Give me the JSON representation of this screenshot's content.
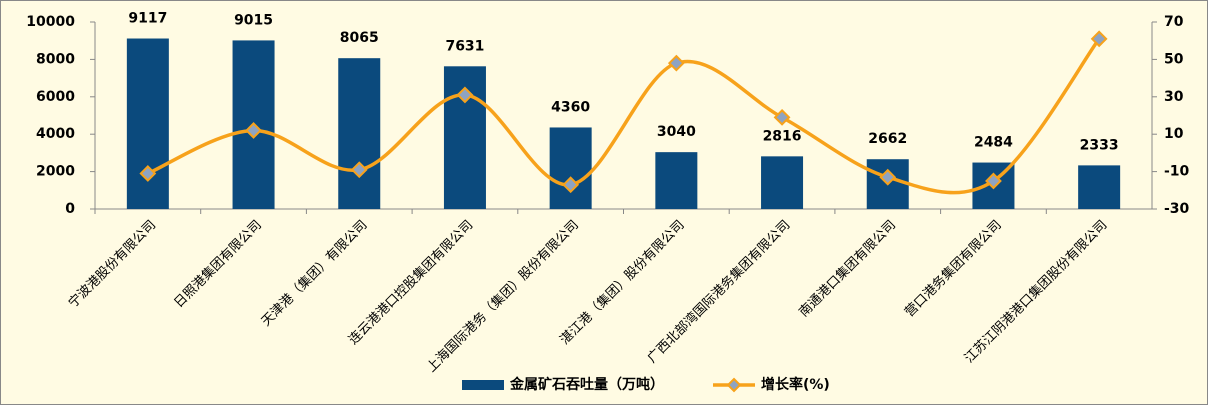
{
  "chart_data": {
    "type": "bar_line",
    "categories": [
      "宁波港股份有限公司",
      "日照港集团有限公司",
      "天津港（集团）有限公司",
      "连云港港口控股集团有限公司",
      "上海国际港务（集团）股份有限公司",
      "湛江港（集团）股份有限公司",
      "广西北部湾国际港务集团有限公司",
      "南通港口集团有限公司",
      "营口港务集团有限公司",
      "江苏江阴港港口集团股份有限公司"
    ],
    "series": [
      {
        "name": "金属矿石吞吐量（万吨）",
        "color": "#0b4a7d",
        "values": [
          9117,
          9015,
          8065,
          7631,
          4360,
          3040,
          2816,
          2662,
          2484,
          2333
        ]
      },
      {
        "name": "增长率(%)",
        "color": "#f7a21b",
        "axis": "y2",
        "values": [
          -11,
          12,
          -9,
          31,
          -17,
          48,
          19,
          -13,
          -15,
          61
        ]
      }
    ],
    "ylim": [
      0,
      10000
    ],
    "yticks": [
      0,
      2000,
      4000,
      6000,
      8000,
      10000
    ],
    "y2lim": [
      -30,
      70
    ],
    "y2ticks": [
      -30,
      -10,
      10,
      30,
      50,
      70
    ]
  }
}
